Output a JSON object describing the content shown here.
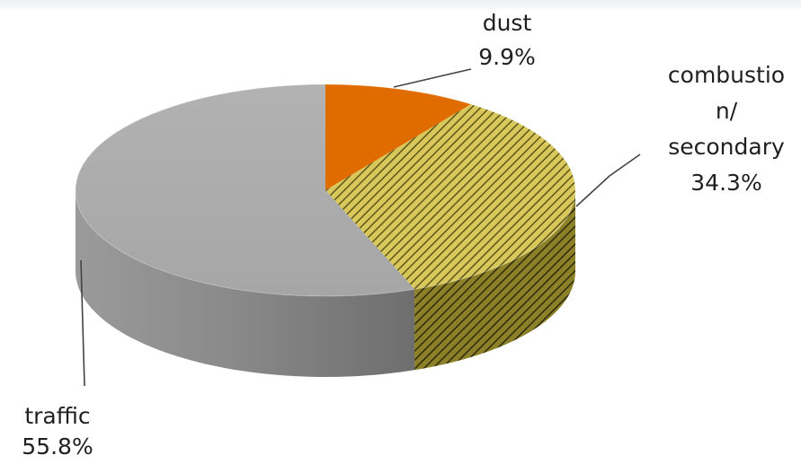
{
  "chart_data": {
    "type": "pie",
    "title": "",
    "three_d": true,
    "legend": "none",
    "slices": [
      {
        "name": "dust",
        "value": 9.9,
        "value_label": "9.9%",
        "label_lines": [
          "dust"
        ],
        "color": "#e06c00",
        "side_color": "#b35500",
        "pattern": "solid"
      },
      {
        "name": "combustion/ secondary",
        "value": 34.3,
        "value_label": "34.3%",
        "label_lines": [
          "combustio",
          "n/",
          "secondary"
        ],
        "color": "#c9b84a",
        "side_color": "#7a6f22",
        "pattern": "diagonal-hatch"
      },
      {
        "name": "traffic",
        "value": 55.8,
        "value_label": "55.8%",
        "label_lines": [
          "traffic"
        ],
        "color": "#a9a9a9",
        "side_color": "#848484",
        "pattern": "solid"
      }
    ]
  }
}
